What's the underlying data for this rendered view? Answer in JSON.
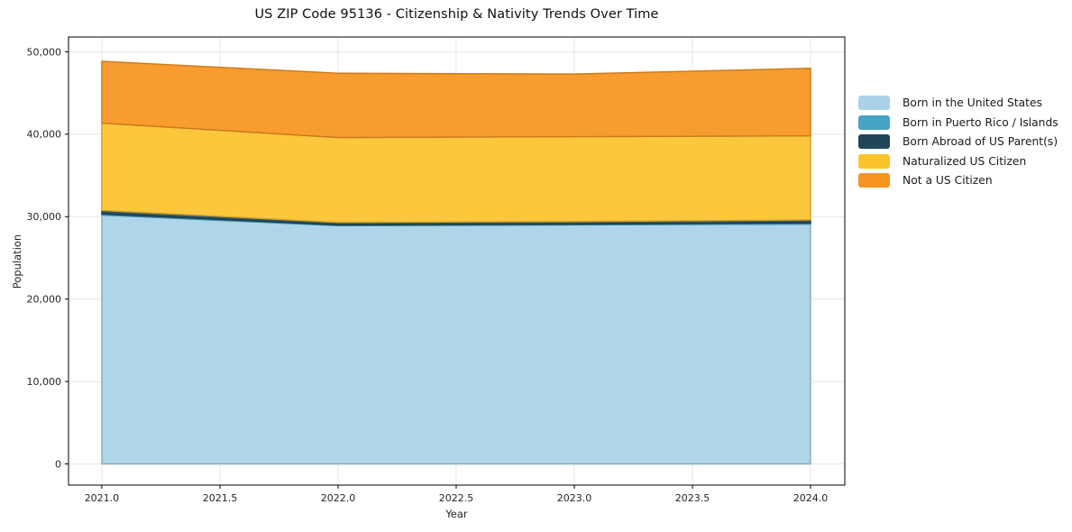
{
  "chart_data": {
    "type": "area",
    "stacked": true,
    "title": "US ZIP Code 95136 - Citizenship & Nativity Trends Over Time",
    "xlabel": "Year",
    "ylabel": "Population",
    "x": [
      2021,
      2022,
      2023,
      2024
    ],
    "series": [
      {
        "name": "Born in the United States",
        "color": "#a9d2e7",
        "values": [
          30200,
          28900,
          29000,
          29100
        ]
      },
      {
        "name": "Born in Puerto Rico / Islands",
        "color": "#45a3c4",
        "values": [
          150,
          100,
          100,
          150
        ]
      },
      {
        "name": "Born Abroad of US Parent(s)",
        "color": "#1f4759",
        "values": [
          400,
          300,
          300,
          350
        ]
      },
      {
        "name": "Naturalized US Citizen",
        "color": "#fcc32d",
        "values": [
          10600,
          10300,
          10300,
          10200
        ]
      },
      {
        "name": "Not a US Citizen",
        "color": "#f7941f",
        "values": [
          7500,
          7800,
          7600,
          8200
        ]
      }
    ],
    "totals": [
      48850,
      47400,
      47300,
      48000
    ],
    "x_ticks": [
      {
        "value": 2021.0,
        "label": "2021.0"
      },
      {
        "value": 2021.5,
        "label": "2021.5"
      },
      {
        "value": 2022.0,
        "label": "2022.0"
      },
      {
        "value": 2022.5,
        "label": "2022.5"
      },
      {
        "value": 2023.0,
        "label": "2023.0"
      },
      {
        "value": 2023.5,
        "label": "2023.5"
      },
      {
        "value": 2024.0,
        "label": "2024.0"
      }
    ],
    "y_ticks": [
      {
        "value": 0,
        "label": "0"
      },
      {
        "value": 10000,
        "label": "10,000"
      },
      {
        "value": 20000,
        "label": "20,000"
      },
      {
        "value": 30000,
        "label": "30,000"
      },
      {
        "value": 40000,
        "label": "40,000"
      },
      {
        "value": 50000,
        "label": "50,000"
      }
    ],
    "xlim": [
      2020.859,
      2024.145
    ],
    "ylim": [
      -2570,
      51800
    ],
    "grid": true,
    "grid_color": "#e7e7e7",
    "spine_color": "#000000",
    "tick_label_color": "#262626",
    "legend_position": "right-outside"
  }
}
